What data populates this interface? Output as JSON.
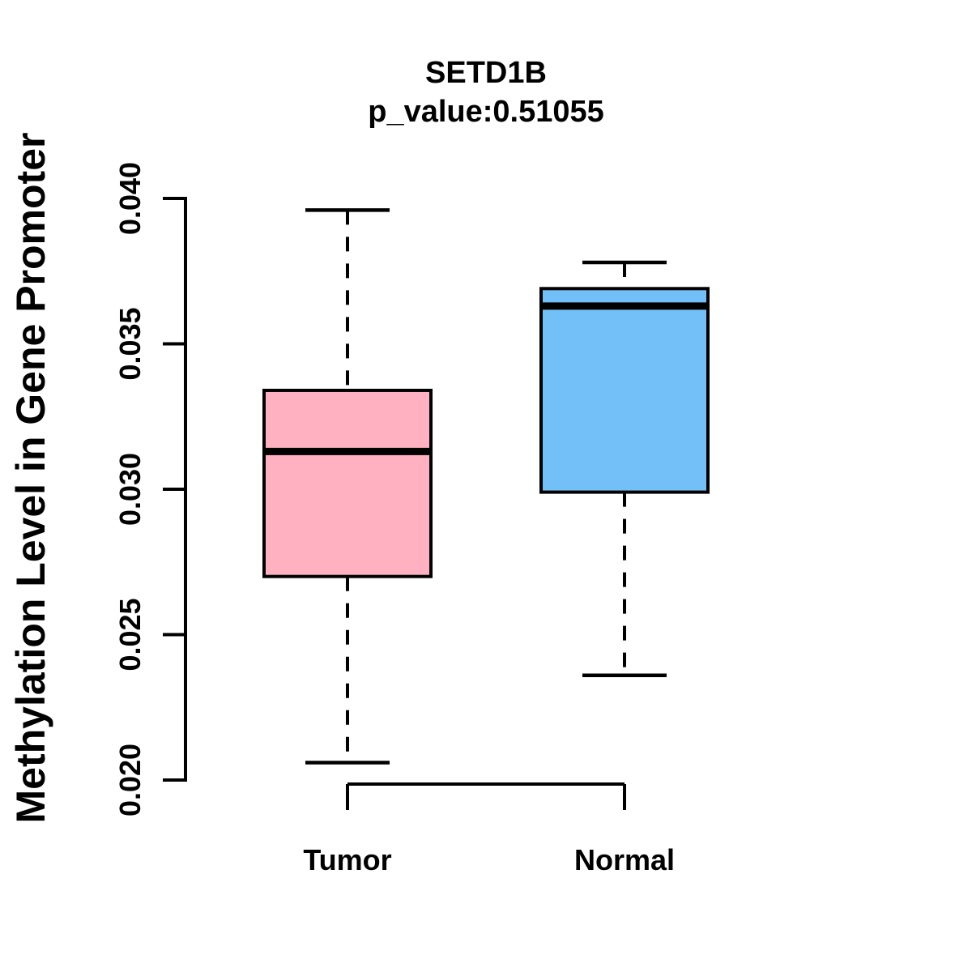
{
  "chart_data": {
    "type": "boxplot",
    "title": "SETD1B",
    "subtitle": "p_value:0.51055",
    "p_value": 0.51055,
    "ylabel": "Methylation Level in Gene Promoter",
    "xlabel": "",
    "ylim": [
      0.02,
      0.04
    ],
    "yticks": [
      0.02,
      0.025,
      0.03,
      0.035,
      0.04
    ],
    "ytick_labels": [
      "0.020",
      "0.025",
      "0.030",
      "0.035",
      "0.040"
    ],
    "grid": false,
    "legend": "none",
    "whisker_style": "dashed",
    "axis_color": "#000000",
    "groups": [
      {
        "label": "Tumor",
        "color": "#FFB1C1",
        "whisker_low": 0.0206,
        "q1": 0.027,
        "median": 0.0313,
        "q3": 0.0334,
        "whisker_high": 0.0396
      },
      {
        "label": "Normal",
        "color": "#73BFF7",
        "whisker_low": 0.0236,
        "q1": 0.0299,
        "median": 0.0363,
        "q3": 0.0369,
        "whisker_high": 0.0378
      }
    ]
  }
}
